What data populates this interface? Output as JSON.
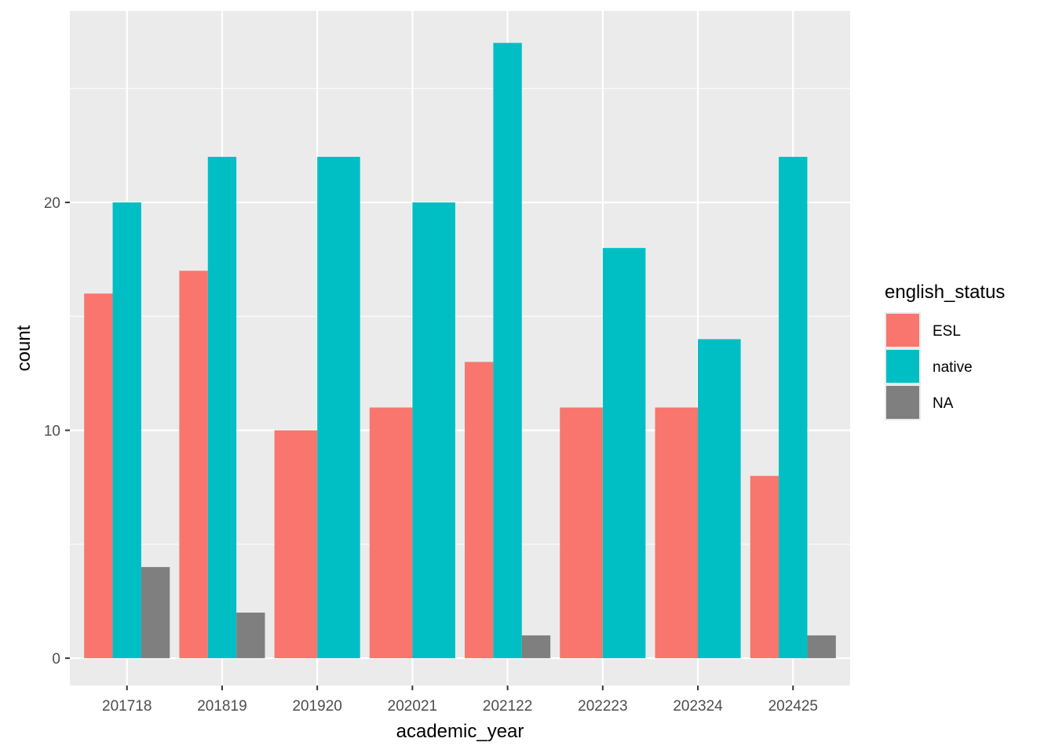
{
  "chart_data": {
    "type": "bar",
    "title": "",
    "xlabel": "academic_year",
    "ylabel": "count",
    "ylim": [
      -1.2,
      28.4
    ],
    "yticks": [
      0,
      10,
      20
    ],
    "grid": true,
    "legend_position": "right",
    "legend_title": "english_status",
    "categories": [
      "201718",
      "201819",
      "201920",
      "202021",
      "202122",
      "202223",
      "202324",
      "202425"
    ],
    "series": [
      {
        "name": "ESL",
        "color": "#F8766D",
        "values": [
          16,
          17,
          10,
          11,
          13,
          11,
          11,
          8
        ]
      },
      {
        "name": "native",
        "color": "#00BFC4",
        "values": [
          20,
          22,
          22,
          20,
          27,
          18,
          14,
          22
        ]
      },
      {
        "name": "NA",
        "color": "#7F7F7F",
        "values": [
          4,
          2,
          null,
          null,
          1,
          null,
          null,
          1
        ]
      }
    ],
    "colors": {
      "panel_background": "#EBEBEB",
      "grid": "#FFFFFF",
      "axis_text": "#4D4D4D"
    }
  }
}
